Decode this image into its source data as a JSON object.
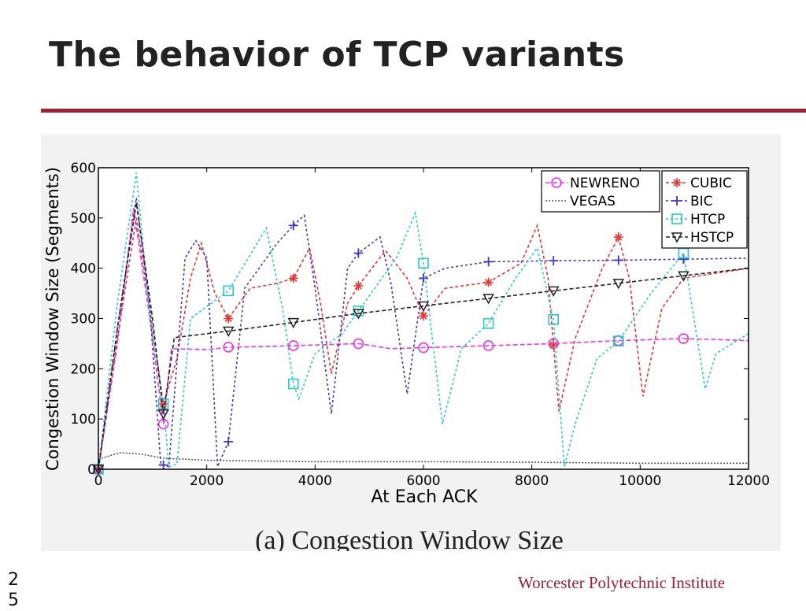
{
  "slide": {
    "title": "The behavior of TCP variants",
    "footer": "Worcester Polytechnic Institute",
    "page_number": "25",
    "accent_color": "#a41f35"
  },
  "chart_data": {
    "type": "line",
    "title": "",
    "caption": "(a) Congestion Window Size",
    "xlabel": "At Each ACK",
    "ylabel": "Congestion Window Size (Segments)",
    "xlim": [
      0,
      12000
    ],
    "ylim": [
      0,
      600
    ],
    "xticks": [
      0,
      2000,
      4000,
      6000,
      8000,
      10000,
      12000
    ],
    "yticks": [
      0,
      100,
      200,
      300,
      400,
      500,
      600
    ],
    "grid": false,
    "legend_placement": "top-right",
    "series": [
      {
        "name": "NEWRENO",
        "color": "#ee33ee",
        "marker": "circle",
        "dash": "6,3",
        "points": [
          [
            0,
            0
          ],
          [
            350,
            250
          ],
          [
            650,
            520
          ],
          [
            950,
            300
          ],
          [
            1200,
            90
          ],
          [
            1350,
            240
          ],
          [
            2000,
            238
          ],
          [
            2400,
            243
          ],
          [
            3000,
            244
          ],
          [
            3600,
            246
          ],
          [
            4200,
            248
          ],
          [
            4800,
            250
          ],
          [
            5400,
            240
          ],
          [
            6000,
            242
          ],
          [
            6600,
            244
          ],
          [
            7200,
            246
          ],
          [
            7800,
            248
          ],
          [
            8400,
            250
          ],
          [
            9000,
            253
          ],
          [
            9600,
            256
          ],
          [
            10200,
            258
          ],
          [
            10800,
            260
          ],
          [
            11400,
            258
          ],
          [
            12000,
            256
          ]
        ],
        "marker_x": [
          0,
          1200,
          2400,
          3600,
          4800,
          6000,
          7200,
          8400,
          9600,
          10800
        ]
      },
      {
        "name": "VEGAS",
        "color": "#555555",
        "marker": "none",
        "dash": "2,2",
        "points": [
          [
            0,
            20
          ],
          [
            400,
            33
          ],
          [
            800,
            30
          ],
          [
            1200,
            22
          ],
          [
            2000,
            18
          ],
          [
            4000,
            15
          ],
          [
            6000,
            15
          ],
          [
            8000,
            14
          ],
          [
            10000,
            12
          ],
          [
            12000,
            12
          ]
        ],
        "marker_x": []
      },
      {
        "name": "CUBIC",
        "color": "#ee3333",
        "marker": "star",
        "dash": "4,3",
        "points": [
          [
            0,
            0
          ],
          [
            350,
            260
          ],
          [
            700,
            500
          ],
          [
            950,
            320
          ],
          [
            1200,
            130
          ],
          [
            1450,
            220
          ],
          [
            1700,
            380
          ],
          [
            1900,
            450
          ],
          [
            2150,
            350
          ],
          [
            2400,
            300
          ],
          [
            2800,
            360
          ],
          [
            3300,
            370
          ],
          [
            3600,
            380
          ],
          [
            3900,
            440
          ],
          [
            4100,
            330
          ],
          [
            4300,
            190
          ],
          [
            4600,
            330
          ],
          [
            4800,
            365
          ],
          [
            5300,
            435
          ],
          [
            5700,
            380
          ],
          [
            6000,
            305
          ],
          [
            6400,
            360
          ],
          [
            7200,
            372
          ],
          [
            7800,
            410
          ],
          [
            8100,
            485
          ],
          [
            8300,
            380
          ],
          [
            8500,
            115
          ],
          [
            8800,
            260
          ],
          [
            9300,
            400
          ],
          [
            9600,
            462
          ],
          [
            9800,
            380
          ],
          [
            10050,
            145
          ],
          [
            10400,
            320
          ],
          [
            10800,
            380
          ],
          [
            11400,
            390
          ],
          [
            12000,
            400
          ]
        ],
        "marker_x": [
          0,
          1200,
          2400,
          3600,
          4800,
          6000,
          7200,
          8400,
          9600
        ]
      },
      {
        "name": "BIC",
        "color": "#4433cc",
        "marker": "plus",
        "dash": "3,3",
        "points": [
          [
            0,
            0
          ],
          [
            350,
            280
          ],
          [
            700,
            540
          ],
          [
            950,
            320
          ],
          [
            1150,
            10
          ],
          [
            1300,
            5
          ],
          [
            1600,
            420
          ],
          [
            1800,
            455
          ],
          [
            2000,
            420
          ],
          [
            2200,
            5
          ],
          [
            2400,
            55
          ],
          [
            2700,
            360
          ],
          [
            3300,
            450
          ],
          [
            3600,
            485
          ],
          [
            3800,
            505
          ],
          [
            4000,
            360
          ],
          [
            4300,
            110
          ],
          [
            4600,
            400
          ],
          [
            4800,
            430
          ],
          [
            5200,
            462
          ],
          [
            5400,
            370
          ],
          [
            5700,
            150
          ],
          [
            6000,
            380
          ],
          [
            6400,
            400
          ],
          [
            7200,
            413
          ],
          [
            8400,
            415
          ],
          [
            9600,
            416
          ],
          [
            10800,
            418
          ],
          [
            12000,
            420
          ]
        ],
        "marker_x": [
          0,
          1200,
          2400,
          3600,
          4800,
          6000,
          7200,
          8400,
          9600,
          10800
        ]
      },
      {
        "name": "HTCP",
        "color": "#22cccc",
        "marker": "square",
        "dash": "3,3",
        "points": [
          [
            0,
            0
          ],
          [
            350,
            330
          ],
          [
            700,
            590
          ],
          [
            950,
            300
          ],
          [
            1200,
            130
          ],
          [
            1300,
            5
          ],
          [
            1450,
            10
          ],
          [
            1700,
            300
          ],
          [
            2400,
            355
          ],
          [
            3100,
            480
          ],
          [
            3400,
            320
          ],
          [
            3600,
            170
          ],
          [
            3700,
            140
          ],
          [
            4000,
            230
          ],
          [
            4500,
            270
          ],
          [
            4800,
            315
          ],
          [
            5500,
            420
          ],
          [
            5850,
            510
          ],
          [
            6000,
            410
          ],
          [
            6350,
            90
          ],
          [
            6700,
            240
          ],
          [
            7200,
            290
          ],
          [
            7700,
            380
          ],
          [
            8100,
            440
          ],
          [
            8400,
            298
          ],
          [
            8600,
            5
          ],
          [
            8800,
            90
          ],
          [
            9200,
            220
          ],
          [
            9600,
            255
          ],
          [
            10200,
            350
          ],
          [
            10800,
            430
          ],
          [
            11200,
            160
          ],
          [
            11400,
            230
          ],
          [
            12000,
            270
          ]
        ],
        "marker_x": [
          0,
          1200,
          2400,
          3600,
          4800,
          6000,
          7200,
          8400,
          9600,
          10800
        ]
      },
      {
        "name": "HSTCP",
        "color": "#222222",
        "marker": "triangle-down",
        "dash": "5,3",
        "points": [
          [
            0,
            0
          ],
          [
            350,
            280
          ],
          [
            700,
            530
          ],
          [
            1000,
            300
          ],
          [
            1200,
            110
          ],
          [
            1400,
            262
          ],
          [
            2400,
            275
          ],
          [
            3600,
            292
          ],
          [
            4800,
            310
          ],
          [
            6000,
            325
          ],
          [
            7200,
            340
          ],
          [
            8400,
            355
          ],
          [
            9600,
            370
          ],
          [
            10800,
            385
          ],
          [
            12000,
            400
          ]
        ],
        "marker_x": [
          0,
          1200,
          2400,
          3600,
          4800,
          6000,
          7200,
          8400,
          9600,
          10800
        ]
      }
    ]
  }
}
